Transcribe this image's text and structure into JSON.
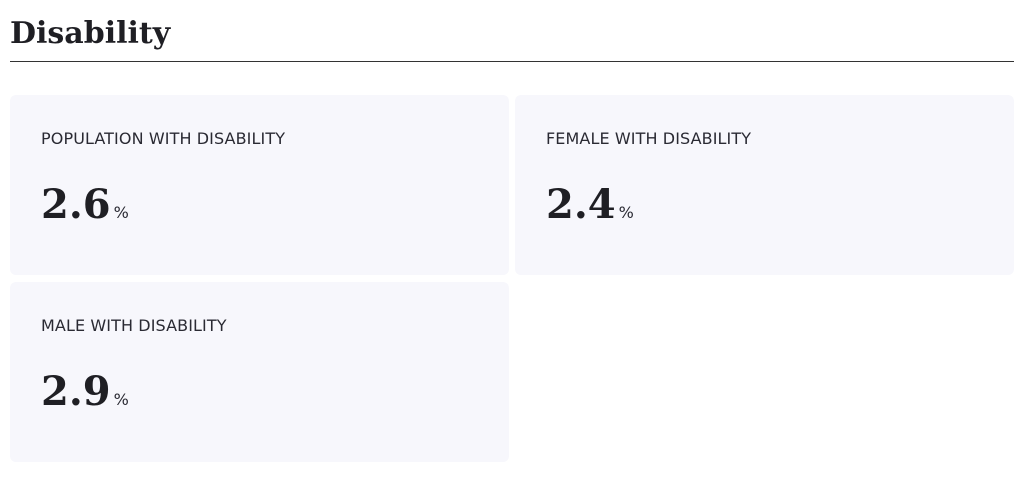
{
  "header": {
    "title": "Disability"
  },
  "cards": [
    {
      "label": "POPULATION WITH DISABILITY",
      "value": 2.6,
      "unit": "%"
    },
    {
      "label": "FEMALE WITH DISABILITY",
      "value": 2.4,
      "unit": "%"
    },
    {
      "label": "MALE WITH DISABILITY",
      "value": 2.9,
      "unit": "%"
    }
  ]
}
